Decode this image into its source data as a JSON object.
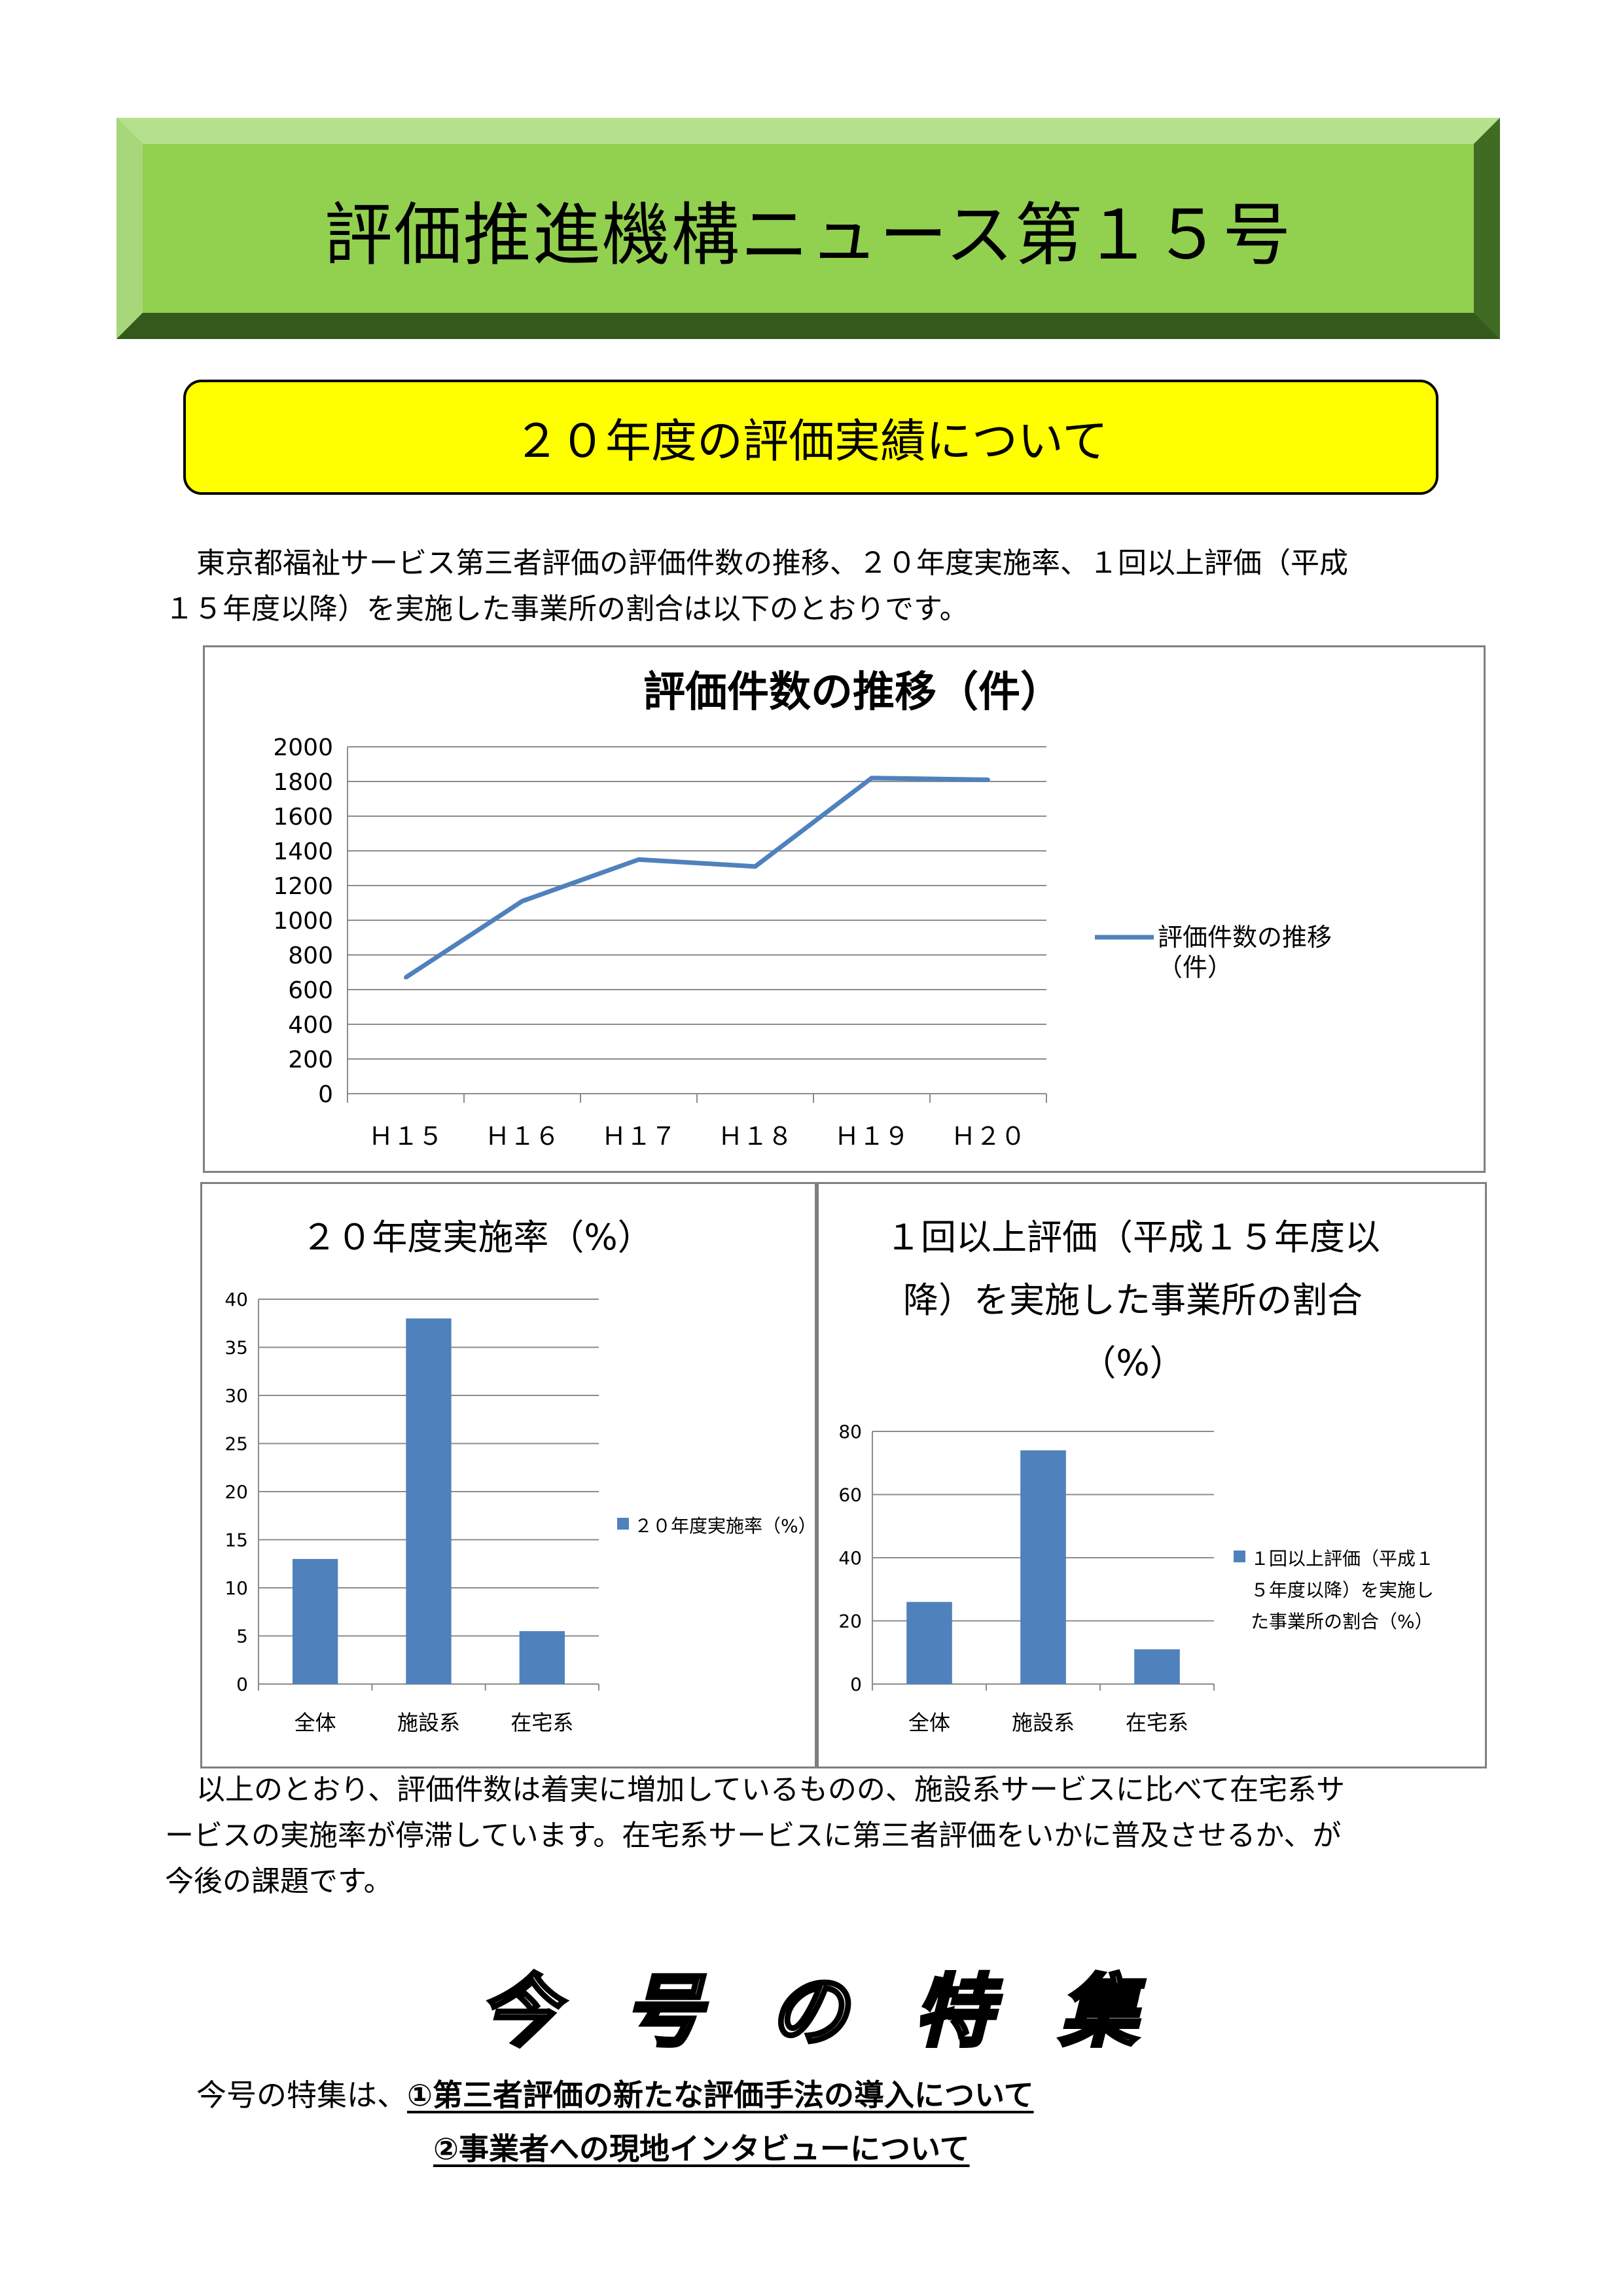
{
  "title": "評価推進機構ニュース第１５号",
  "section_heading": "２０年度の評価実績について",
  "intro": {
    "line1": "東京都福祉サービス第三者評価の評価件数の推移、２０年度実施率、１回以上評価（平成",
    "line2": "１５年度以降）を実施した事業所の割合は以下のとおりです。"
  },
  "conclusion": {
    "line1": "以上のとおり、評価件数は着実に増加しているものの、施設系サービスに比べて在宅系サ",
    "line2": "ービスの実施率が停滞しています。在宅系サービスに第三者評価をいかに普及させるか、が",
    "line3": "今後の課題です。"
  },
  "special": {
    "heading": "今 号 の 特 集",
    "intro": "今号の特集は、",
    "item1": "①第三者評価の新たな評価手法の導入について",
    "item2": "②事業者への現地インタビューについて"
  },
  "colors": {
    "banner_green": "#92d050",
    "banner_dark": "#4f7f2a",
    "section_yellow": "#ffff00",
    "series_blue": "#4f81bd"
  },
  "chart_data": [
    {
      "type": "line",
      "title": "評価件数の推移（件）",
      "categories": [
        "Ｈ１５",
        "Ｈ１６",
        "Ｈ１７",
        "Ｈ１８",
        "Ｈ１９",
        "Ｈ２０"
      ],
      "series": [
        {
          "name": "評価件数の推移（件）",
          "values": [
            670,
            1110,
            1350,
            1310,
            1820,
            1810
          ]
        }
      ],
      "ylim": [
        0,
        2000
      ],
      "yticks": [
        0,
        200,
        400,
        600,
        800,
        1000,
        1200,
        1400,
        1600,
        1800,
        2000
      ],
      "grid": true,
      "legend": "right"
    },
    {
      "type": "bar",
      "title": "２０年度実施率（%）",
      "categories": [
        "全体",
        "施設系",
        "在宅系"
      ],
      "series": [
        {
          "name": "２０年度実施率（%）",
          "values": [
            13,
            38,
            5.5
          ]
        }
      ],
      "ylim": [
        0,
        40
      ],
      "yticks": [
        0,
        5,
        10,
        15,
        20,
        25,
        30,
        35,
        40
      ],
      "grid": true,
      "legend": "right"
    },
    {
      "type": "bar",
      "title_lines": [
        "１回以上評価（平成１５年度以",
        "降）を実施した事業所の割合",
        "（%）"
      ],
      "categories": [
        "全体",
        "施設系",
        "在宅系"
      ],
      "series": [
        {
          "name_lines": [
            "１回以上評価（平成１",
            "５年度以降）を実施し",
            "た事業所の割合（%）"
          ],
          "values": [
            26,
            74,
            11
          ]
        }
      ],
      "ylim": [
        0,
        80
      ],
      "yticks": [
        0,
        20,
        40,
        60,
        80
      ],
      "grid": true,
      "legend": "right"
    }
  ]
}
